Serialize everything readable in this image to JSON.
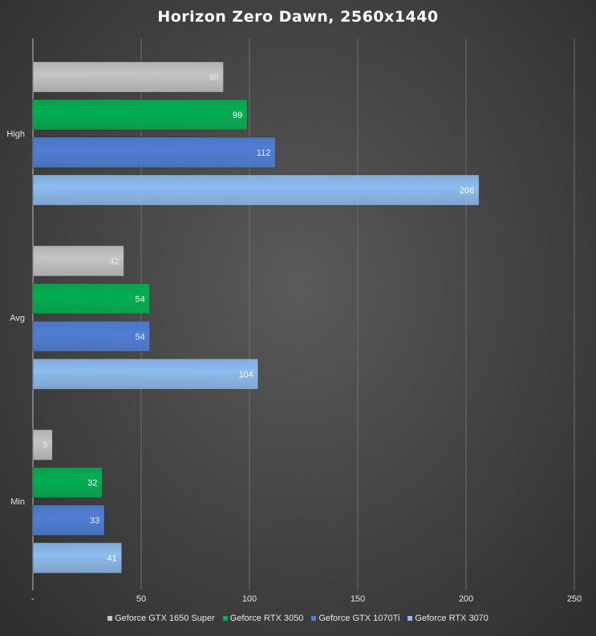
{
  "chart_data": {
    "type": "bar",
    "orientation": "horizontal",
    "title": "Horizon  Zero Dawn, 2560x1440",
    "xlabel": "",
    "ylabel": "",
    "categories": [
      "High",
      "Avg",
      "Min"
    ],
    "series": [
      {
        "name": "Geforce GTX 1650 Super",
        "values": [
          88,
          42,
          9
        ],
        "color": "#c4c4c4",
        "label_color": "#e8e8e8"
      },
      {
        "name": "Geforce RTX 3050",
        "values": [
          99,
          54,
          32
        ],
        "color": "#00b050",
        "label_color": "#ffffff"
      },
      {
        "name": "Geforce GTX 1070Ti",
        "values": [
          112,
          54,
          33
        ],
        "color": "#4f7ed6",
        "label_color": "#e6ecff"
      },
      {
        "name": "Geforce RTX 3070",
        "values": [
          206,
          104,
          41
        ],
        "color": "#8dbcf0",
        "label_color": "#ffffff"
      }
    ],
    "xlim": [
      0,
      250
    ],
    "x_ticks": [
      "-",
      "50",
      "100",
      "150",
      "200",
      "250"
    ],
    "x_tick_values": [
      0,
      50,
      100,
      150,
      200,
      250
    ],
    "grid": true,
    "legend_position": "bottom"
  }
}
